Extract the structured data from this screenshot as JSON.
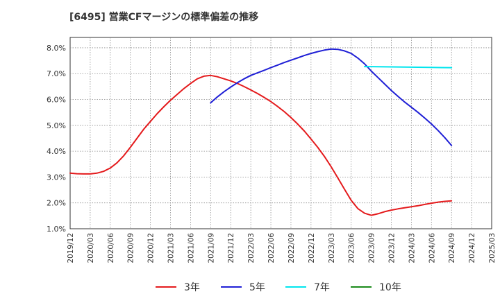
{
  "chart_data": {
    "type": "line",
    "title": "[6495]  営業CFマージンの標準偏差の推移",
    "xlabel": "",
    "ylabel": "",
    "ylim": [
      1.0,
      8.4
    ],
    "y_ticks": [
      "1.0%",
      "2.0%",
      "3.0%",
      "4.0%",
      "5.0%",
      "6.0%",
      "7.0%",
      "8.0%"
    ],
    "x_ticks": [
      "2019/12",
      "2020/03",
      "2020/06",
      "2020/09",
      "2020/12",
      "2021/03",
      "2021/06",
      "2021/09",
      "2021/12",
      "2022/03",
      "2022/06",
      "2022/09",
      "2022/12",
      "2023/03",
      "2023/06",
      "2023/09",
      "2023/12",
      "2024/03",
      "2024/06",
      "2024/09",
      "2024/12",
      "2025/03"
    ],
    "grid": true,
    "legend_position": "bottom",
    "series": [
      {
        "name": "3年",
        "color": "#e41a1c",
        "x": [
          "2019/12",
          "2020/01",
          "2020/02",
          "2020/03",
          "2020/04",
          "2020/05",
          "2020/06",
          "2020/07",
          "2020/08",
          "2020/09",
          "2020/10",
          "2020/11",
          "2020/12",
          "2021/01",
          "2021/02",
          "2021/03",
          "2021/04",
          "2021/05",
          "2021/06",
          "2021/07",
          "2021/08",
          "2021/09",
          "2021/10",
          "2021/11",
          "2021/12",
          "2022/01",
          "2022/02",
          "2022/03",
          "2022/04",
          "2022/05",
          "2022/06",
          "2022/07",
          "2022/08",
          "2022/09",
          "2022/10",
          "2022/11",
          "2022/12",
          "2023/01",
          "2023/02",
          "2023/03",
          "2023/04",
          "2023/05",
          "2023/06",
          "2023/07",
          "2023/08",
          "2023/09",
          "2023/10",
          "2023/11",
          "2023/12",
          "2024/01",
          "2024/02",
          "2024/03",
          "2024/04",
          "2024/05",
          "2024/06",
          "2024/07",
          "2024/08",
          "2024/09"
        ],
        "y": [
          3.15,
          3.13,
          3.12,
          3.12,
          3.15,
          3.22,
          3.35,
          3.55,
          3.82,
          4.15,
          4.5,
          4.85,
          5.15,
          5.45,
          5.72,
          5.97,
          6.2,
          6.42,
          6.62,
          6.8,
          6.9,
          6.93,
          6.88,
          6.8,
          6.72,
          6.62,
          6.5,
          6.37,
          6.23,
          6.08,
          5.92,
          5.73,
          5.53,
          5.3,
          5.05,
          4.78,
          4.47,
          4.15,
          3.8,
          3.4,
          2.97,
          2.53,
          2.1,
          1.78,
          1.6,
          1.52,
          1.58,
          1.66,
          1.72,
          1.77,
          1.81,
          1.85,
          1.89,
          1.94,
          1.99,
          2.03,
          2.06,
          2.08
        ]
      },
      {
        "name": "5年",
        "color": "#1f1fd6",
        "x": [
          "2021/09",
          "2021/10",
          "2021/11",
          "2021/12",
          "2022/01",
          "2022/02",
          "2022/03",
          "2022/04",
          "2022/05",
          "2022/06",
          "2022/07",
          "2022/08",
          "2022/09",
          "2022/10",
          "2022/11",
          "2022/12",
          "2023/01",
          "2023/02",
          "2023/03",
          "2023/04",
          "2023/05",
          "2023/06",
          "2023/07",
          "2023/08",
          "2023/09",
          "2023/10",
          "2023/11",
          "2023/12",
          "2024/01",
          "2024/02",
          "2024/03",
          "2024/04",
          "2024/05",
          "2024/06",
          "2024/07",
          "2024/08",
          "2024/09"
        ],
        "y": [
          5.87,
          6.1,
          6.3,
          6.48,
          6.65,
          6.8,
          6.93,
          7.03,
          7.13,
          7.23,
          7.33,
          7.43,
          7.52,
          7.61,
          7.7,
          7.78,
          7.85,
          7.91,
          7.95,
          7.94,
          7.88,
          7.78,
          7.6,
          7.38,
          7.1,
          6.85,
          6.6,
          6.35,
          6.12,
          5.9,
          5.7,
          5.5,
          5.28,
          5.05,
          4.8,
          4.52,
          4.22
        ]
      },
      {
        "name": "7年",
        "color": "#00e5ee",
        "x": [
          "2023/08",
          "2023/09",
          "2023/12",
          "2024/03",
          "2024/06",
          "2024/09"
        ],
        "y": [
          7.27,
          7.27,
          7.26,
          7.25,
          7.24,
          7.23
        ]
      },
      {
        "name": "10年",
        "color": "#1a8a1a",
        "x": [],
        "y": []
      }
    ]
  }
}
